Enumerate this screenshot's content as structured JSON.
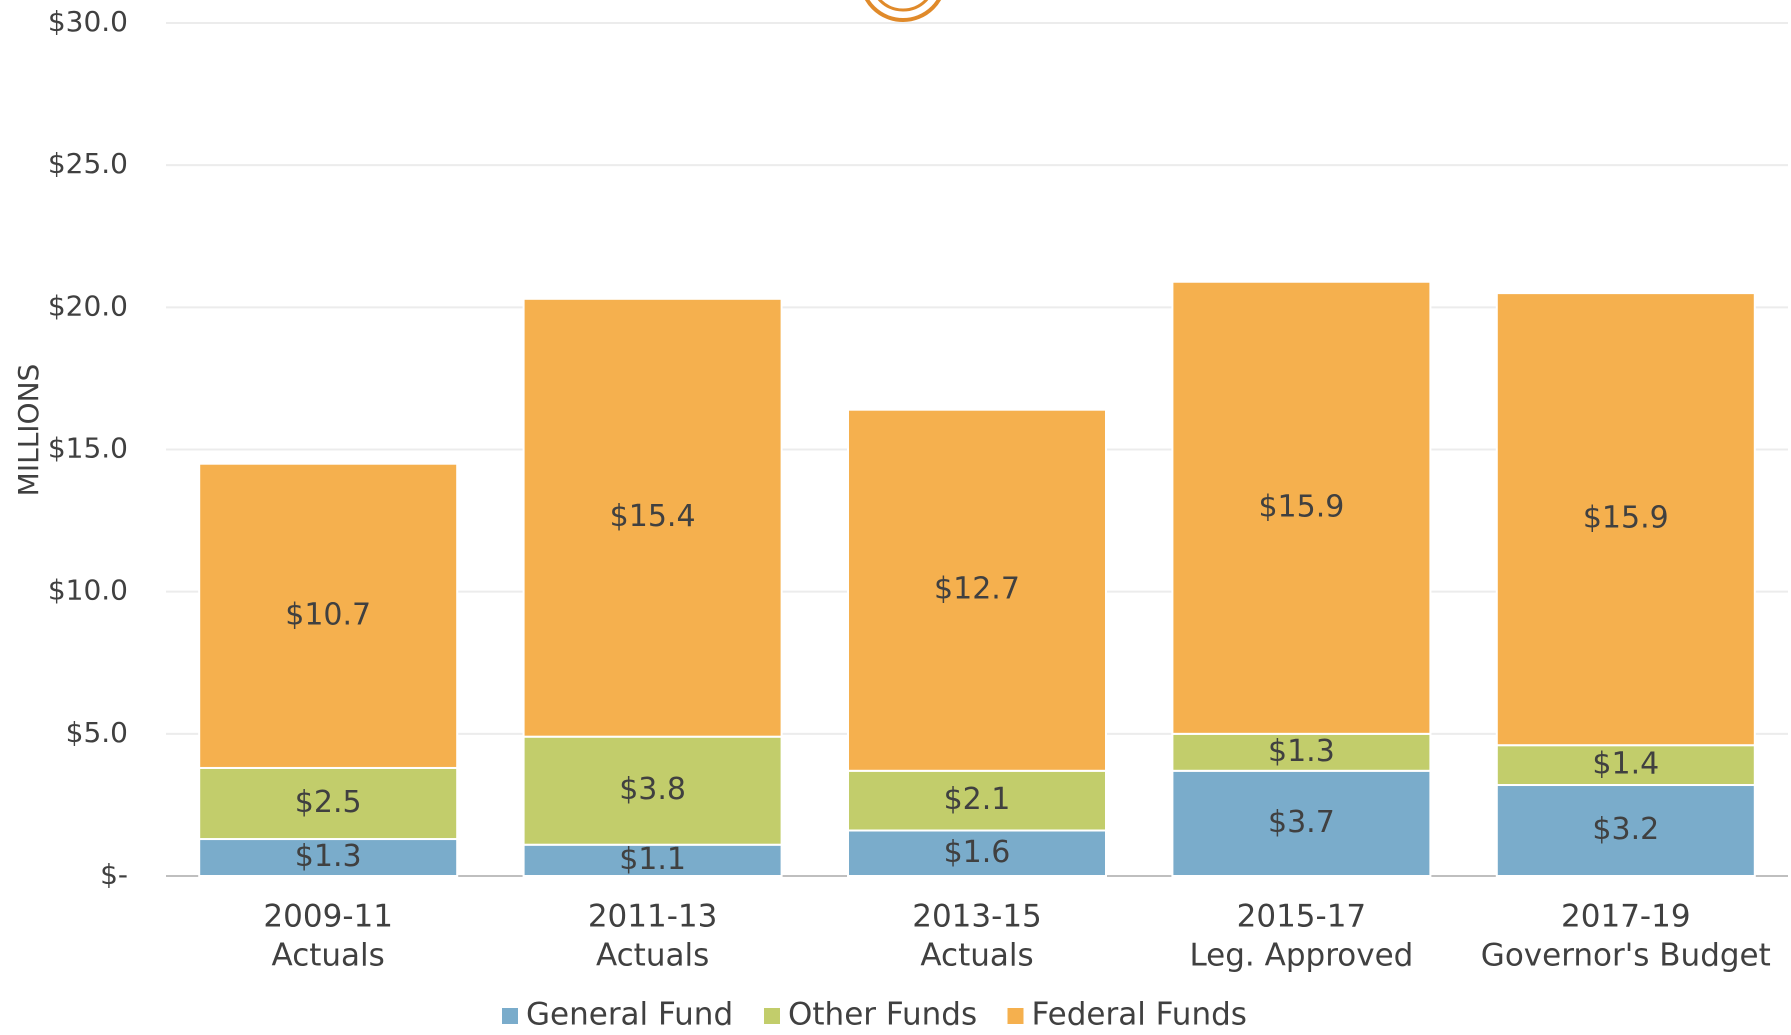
{
  "chart_data": {
    "type": "stacked_bar",
    "y_label": "MILLIONS",
    "categories": [
      [
        "2009-11",
        "Actuals"
      ],
      [
        "2011-13",
        "Actuals"
      ],
      [
        "2013-15",
        "Actuals"
      ],
      [
        "2015-17",
        "Leg. Approved"
      ],
      [
        "2017-19",
        "Governor's Budget"
      ]
    ],
    "series": [
      {
        "name": "General Fund",
        "color": "#7aaccb",
        "values": [
          1.3,
          1.1,
          1.6,
          3.7,
          3.2
        ],
        "value_labels": [
          "$1.3",
          "$1.1",
          "$1.6",
          "$3.7",
          "$3.2"
        ]
      },
      {
        "name": "Other Funds",
        "color": "#c2cd6b",
        "values": [
          2.5,
          3.8,
          2.1,
          1.3,
          1.4
        ],
        "value_labels": [
          "$2.5",
          "$3.8",
          "$2.1",
          "$1.3",
          "$1.4"
        ]
      },
      {
        "name": "Federal Funds",
        "color": "#f5b04e",
        "values": [
          10.7,
          15.4,
          12.7,
          15.9,
          15.9
        ],
        "value_labels": [
          "$10.7",
          "$15.4",
          "$12.7",
          "$15.9",
          "$15.9"
        ]
      }
    ],
    "ylim": [
      0,
      30
    ],
    "yticks": [
      {
        "value": 0,
        "label": "$-"
      },
      {
        "value": 5,
        "label": "$5.0"
      },
      {
        "value": 10,
        "label": "$10.0"
      },
      {
        "value": 15,
        "label": "$15.0"
      },
      {
        "value": 20,
        "label": "$20.0"
      },
      {
        "value": 25,
        "label": "$25.0"
      },
      {
        "value": 30,
        "label": "$30.0"
      }
    ],
    "grid": true,
    "legend": "bottom"
  }
}
